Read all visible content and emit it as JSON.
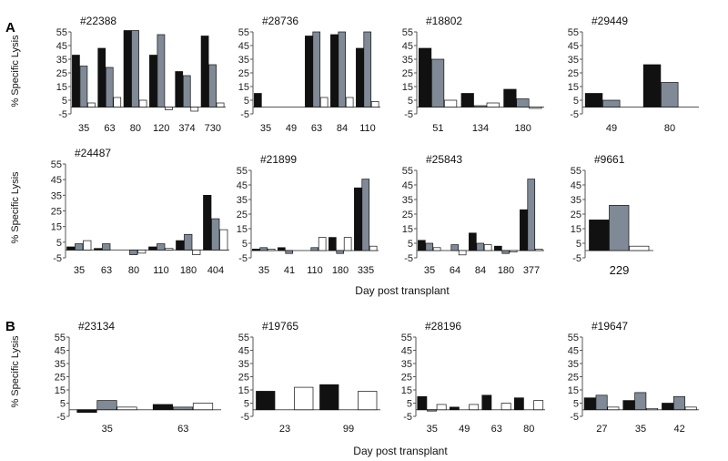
{
  "chart_data": {
    "type": "bar",
    "colors": {
      "black": "#111111",
      "gray": "#808a96",
      "white": "#ffffff"
    },
    "y_ticks": [
      "55",
      "45",
      "35",
      "25",
      "15",
      "5",
      "-5"
    ],
    "ylim": [
      -5,
      55
    ],
    "ylabel": "% Specific Lysis",
    "xlabel": "Day post transplant",
    "panel_labels": [
      "A",
      "B"
    ],
    "panels": [
      {
        "title": "#22388",
        "categories": [
          "35",
          "63",
          "80",
          "120",
          "374",
          "730"
        ],
        "series": [
          {
            "name": "black",
            "values": [
              38,
              43,
              56,
              38,
              26,
              52
            ]
          },
          {
            "name": "gray",
            "values": [
              30,
              29,
              56,
              53,
              23,
              31
            ]
          },
          {
            "name": "white",
            "values": [
              3,
              7,
              5,
              -2,
              -3,
              3
            ]
          }
        ]
      },
      {
        "title": "#28736",
        "categories": [
          "35",
          "49",
          "63",
          "84",
          "110"
        ],
        "series": [
          {
            "name": "black",
            "values": [
              10,
              0,
              52,
              53,
              43
            ]
          },
          {
            "name": "gray",
            "values": [
              0,
              0,
              55,
              55,
              55
            ]
          },
          {
            "name": "white",
            "values": [
              0,
              0,
              7,
              7,
              4
            ]
          }
        ]
      },
      {
        "title": "#18802",
        "categories": [
          "51",
          "134",
          "180"
        ],
        "series": [
          {
            "name": "black",
            "values": [
              43,
              10,
              13
            ]
          },
          {
            "name": "gray",
            "values": [
              35,
              1,
              6
            ]
          },
          {
            "name": "white",
            "values": [
              5,
              3,
              -1
            ]
          }
        ]
      },
      {
        "title": "#29449",
        "categories": [
          "49",
          "80"
        ],
        "series": [
          {
            "name": "black",
            "values": [
              10,
              31
            ]
          },
          {
            "name": "gray",
            "values": [
              5,
              18
            ]
          },
          {
            "name": "white",
            "values": [
              0,
              0
            ]
          }
        ]
      },
      {
        "title": "#24487",
        "categories": [
          "35",
          "63",
          "80",
          "110",
          "180",
          "404"
        ],
        "series": [
          {
            "name": "black",
            "values": [
              2,
              1,
              0,
              2,
              6,
              35
            ]
          },
          {
            "name": "gray",
            "values": [
              4,
              4,
              -3,
              4,
              10,
              20
            ]
          },
          {
            "name": "white",
            "values": [
              6,
              0,
              -2,
              1,
              -3,
              13
            ]
          }
        ]
      },
      {
        "title": "#21899",
        "categories": [
          "35",
          "41",
          "110",
          "180",
          "335"
        ],
        "series": [
          {
            "name": "black",
            "values": [
              1,
              2,
              0,
              9,
              43
            ]
          },
          {
            "name": "gray",
            "values": [
              2,
              -2,
              2,
              -2,
              49
            ]
          },
          {
            "name": "white",
            "values": [
              1,
              0,
              9,
              9,
              3
            ]
          }
        ]
      },
      {
        "title": "#25843",
        "categories": [
          "35",
          "64",
          "84",
          "180",
          "377"
        ],
        "series": [
          {
            "name": "black",
            "values": [
              7,
              0,
              12,
              3,
              28
            ]
          },
          {
            "name": "gray",
            "values": [
              5,
              4,
              5,
              -2,
              49
            ]
          },
          {
            "name": "white",
            "values": [
              2,
              -3,
              4,
              -1,
              1
            ]
          }
        ]
      },
      {
        "title": "#9661",
        "categories": [
          "229"
        ],
        "series": [
          {
            "name": "black",
            "values": [
              21
            ]
          },
          {
            "name": "gray",
            "values": [
              31
            ]
          },
          {
            "name": "white",
            "values": [
              3
            ]
          }
        ]
      },
      {
        "title": "#23134",
        "categories": [
          "35",
          "63"
        ],
        "series": [
          {
            "name": "black",
            "values": [
              -2,
              4
            ]
          },
          {
            "name": "gray",
            "values": [
              7,
              2
            ]
          },
          {
            "name": "white",
            "values": [
              2,
              5
            ]
          }
        ]
      },
      {
        "title": "#19765",
        "categories": [
          "23",
          "99"
        ],
        "series": [
          {
            "name": "black",
            "values": [
              14,
              19
            ]
          },
          {
            "name": "gray",
            "values": [
              0,
              0
            ]
          },
          {
            "name": "white",
            "values": [
              17,
              14
            ]
          }
        ]
      },
      {
        "title": "#28196",
        "categories": [
          "35",
          "49",
          "63",
          "80"
        ],
        "series": [
          {
            "name": "black",
            "values": [
              10,
              2,
              11,
              9
            ]
          },
          {
            "name": "gray",
            "values": [
              -1,
              0,
              0,
              0
            ]
          },
          {
            "name": "white",
            "values": [
              4,
              4,
              5,
              7
            ]
          }
        ]
      },
      {
        "title": "#19647",
        "categories": [
          "27",
          "35",
          "42"
        ],
        "series": [
          {
            "name": "black",
            "values": [
              9,
              7,
              5
            ]
          },
          {
            "name": "gray",
            "values": [
              11,
              13,
              10
            ]
          },
          {
            "name": "white",
            "values": [
              2,
              1,
              2
            ]
          }
        ]
      }
    ]
  }
}
